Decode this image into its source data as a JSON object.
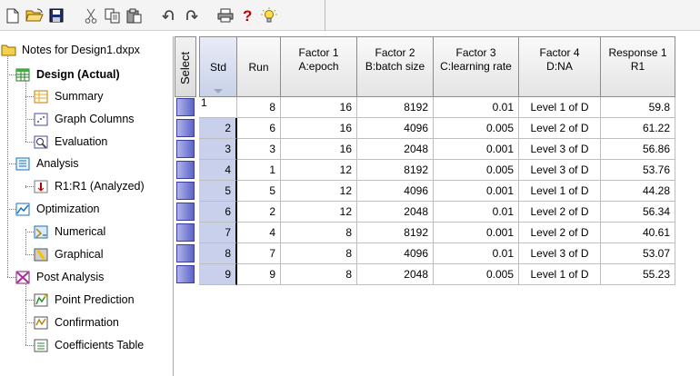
{
  "toolbar": {
    "buttons": [
      "new-icon",
      "open-icon",
      "save-icon",
      "cut-icon",
      "copy-icon",
      "paste-icon",
      "undo-icon",
      "redo-icon",
      "print-icon",
      "help-icon",
      "tip-icon"
    ]
  },
  "tree": {
    "root": "Notes for Design1.dxpx",
    "items": [
      {
        "label": "Design (Actual)"
      },
      {
        "label": "Summary"
      },
      {
        "label": "Graph Columns"
      },
      {
        "label": "Evaluation"
      },
      {
        "label": "Analysis"
      },
      {
        "label": "R1:R1 (Analyzed)"
      },
      {
        "label": "Optimization"
      },
      {
        "label": "Numerical"
      },
      {
        "label": "Graphical"
      },
      {
        "label": "Post Analysis"
      },
      {
        "label": "Point Prediction"
      },
      {
        "label": "Confirmation"
      },
      {
        "label": "Coefficients Table"
      }
    ]
  },
  "grid": {
    "select_header": "Select",
    "headers": {
      "std": "Std",
      "run": "Run",
      "f1_top": "Factor 1",
      "f1_bottom": "A:epoch",
      "f2_top": "Factor 2",
      "f2_bottom": "B:batch size",
      "f3_top": "Factor 3",
      "f3_bottom": "C:learning rate",
      "f4_top": "Factor 4",
      "f4_bottom": "D:NA",
      "r1_top": "Response 1",
      "r1_bottom": "R1"
    },
    "rows": [
      {
        "std": "1",
        "run": "8",
        "epoch": "16",
        "batch": "8192",
        "lr": "0.01",
        "d": "Level 1 of D",
        "r1": "59.8"
      },
      {
        "std": "2",
        "run": "6",
        "epoch": "16",
        "batch": "4096",
        "lr": "0.005",
        "d": "Level 2 of D",
        "r1": "61.22"
      },
      {
        "std": "3",
        "run": "3",
        "epoch": "16",
        "batch": "2048",
        "lr": "0.001",
        "d": "Level 3 of D",
        "r1": "56.86"
      },
      {
        "std": "4",
        "run": "1",
        "epoch": "12",
        "batch": "8192",
        "lr": "0.005",
        "d": "Level 3 of D",
        "r1": "53.76"
      },
      {
        "std": "5",
        "run": "5",
        "epoch": "12",
        "batch": "4096",
        "lr": "0.001",
        "d": "Level 1 of D",
        "r1": "44.28"
      },
      {
        "std": "6",
        "run": "2",
        "epoch": "12",
        "batch": "2048",
        "lr": "0.01",
        "d": "Level 2 of D",
        "r1": "56.34"
      },
      {
        "std": "7",
        "run": "4",
        "epoch": "8",
        "batch": "8192",
        "lr": "0.001",
        "d": "Level 2 of D",
        "r1": "40.61"
      },
      {
        "std": "8",
        "run": "7",
        "epoch": "8",
        "batch": "4096",
        "lr": "0.01",
        "d": "Level 3 of D",
        "r1": "53.07"
      },
      {
        "std": "9",
        "run": "9",
        "epoch": "8",
        "batch": "2048",
        "lr": "0.005",
        "d": "Level 1 of D",
        "r1": "55.23"
      }
    ]
  }
}
